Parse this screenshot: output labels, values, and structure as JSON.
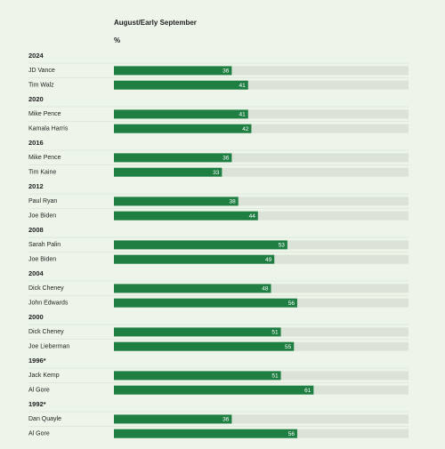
{
  "chart_data": {
    "type": "bar",
    "title": "August/Early September",
    "unit": "%",
    "xlim": [
      0,
      90
    ],
    "color": "#1f7f42",
    "track_color": "#dbe3d8",
    "groups": [
      {
        "year": "2024",
        "people": [
          {
            "name": "JD Vance",
            "value": 36
          },
          {
            "name": "Tim Walz",
            "value": 41
          }
        ]
      },
      {
        "year": "2020",
        "people": [
          {
            "name": "Mike Pence",
            "value": 41
          },
          {
            "name": "Kamala Harris",
            "value": 42
          }
        ]
      },
      {
        "year": "2016",
        "people": [
          {
            "name": "Mike Pence",
            "value": 36
          },
          {
            "name": "Tim Kaine",
            "value": 33
          }
        ]
      },
      {
        "year": "2012",
        "people": [
          {
            "name": "Paul Ryan",
            "value": 38
          },
          {
            "name": "Joe Biden",
            "value": 44
          }
        ]
      },
      {
        "year": "2008",
        "people": [
          {
            "name": "Sarah Palin",
            "value": 53
          },
          {
            "name": "Joe Biden",
            "value": 49
          }
        ]
      },
      {
        "year": "2004",
        "people": [
          {
            "name": "Dick Cheney",
            "value": 48
          },
          {
            "name": "John Edwards",
            "value": 56
          }
        ]
      },
      {
        "year": "2000",
        "people": [
          {
            "name": "Dick Cheney",
            "value": 51
          },
          {
            "name": "Joe Lieberman",
            "value": 55
          }
        ]
      },
      {
        "year": "1996*",
        "people": [
          {
            "name": "Jack Kemp",
            "value": 51
          },
          {
            "name": "Al Gore",
            "value": 61
          }
        ]
      },
      {
        "year": "1992*",
        "people": [
          {
            "name": "Dan Quayle",
            "value": 36
          },
          {
            "name": "Al Gore",
            "value": 56
          }
        ]
      }
    ]
  }
}
